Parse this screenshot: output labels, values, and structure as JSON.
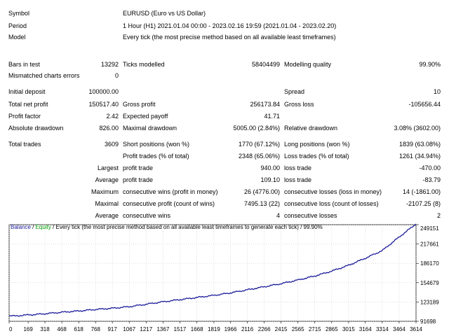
{
  "header": {
    "symbol_label": "Symbol",
    "symbol_value": "EURUSD (Euro vs US Dollar)",
    "period_label": "Period",
    "period_value": "1 Hour (H1) 2021.01.04 00:00 - 2023.02.16 19:59 (2021.01.04 - 2023.02.20)",
    "model_label": "Model",
    "model_value": "Every tick (the most precise method based on all available least timeframes)"
  },
  "stats": {
    "bars_label": "Bars in test",
    "bars_value": "13292",
    "ticks_label": "Ticks modelled",
    "ticks_value": "58404499",
    "quality_label": "Modelling quality",
    "quality_value": "99.90%",
    "mismatch_label": "Mismatched charts errors",
    "mismatch_value": "0",
    "deposit_label": "Initial deposit",
    "deposit_value": "100000.00",
    "spread_label": "Spread",
    "spread_value": "10",
    "netprofit_label": "Total net profit",
    "netprofit_value": "150517.40",
    "grossprofit_label": "Gross profit",
    "grossprofit_value": "256173.84",
    "grossloss_label": "Gross loss",
    "grossloss_value": "-105656.44",
    "pf_label": "Profit factor",
    "pf_value": "2.42",
    "ep_label": "Expected payoff",
    "ep_value": "41.71",
    "absdd_label": "Absolute drawdown",
    "absdd_value": "826.00",
    "maxdd_label": "Maximal drawdown",
    "maxdd_value": "5005.00 (2.84%)",
    "reldd_label": "Relative drawdown",
    "reldd_value": "3.08% (3602.00)",
    "trades_label": "Total trades",
    "trades_value": "3609",
    "short_label": "Short positions (won %)",
    "short_value": "1770 (67.12%)",
    "long_label": "Long positions (won %)",
    "long_value": "1839 (63.08%)",
    "profit_trades_label": "Profit trades (% of total)",
    "profit_trades_value": "2348 (65.06%)",
    "loss_trades_label": "Loss trades (% of total)",
    "loss_trades_value": "1261 (34.94%)",
    "largest_label": "Largest",
    "largest_profit_label": "profit trade",
    "largest_profit_value": "940.00",
    "largest_loss_label": "loss trade",
    "largest_loss_value": "-470.00",
    "average_label": "Average",
    "average_profit_label": "profit trade",
    "average_profit_value": "109.10",
    "average_loss_label": "loss trade",
    "average_loss_value": "-83.79",
    "maximum_label": "Maximum",
    "max_wins_label": "consecutive wins (profit in money)",
    "max_wins_value": "26 (4776.00)",
    "max_losses_label": "consecutive losses (loss in money)",
    "max_losses_value": "14 (-1861.00)",
    "maximal_label": "Maximal",
    "maximal_profit_label": "consecutive profit (count of wins)",
    "maximal_profit_value": "7495.13 (22)",
    "maximal_loss_label": "consecutive loss (count of losses)",
    "maximal_loss_value": "-2107.25 (8)",
    "average2_label": "Average",
    "avg_wins_label": "consecutive wins",
    "avg_wins_value": "4",
    "avg_losses_label": "consecutive losses",
    "avg_losses_value": "2"
  },
  "legend": {
    "balance": "Balance",
    "sep": " / ",
    "equity": "Equity",
    "rest": " / Every tick (the most precise method based on all available least timeframes to generate each tick) / 99.90%"
  },
  "colors": {
    "balance": "#1a1a9a",
    "equity": "#00a000",
    "grid": "#c8c8c8"
  },
  "chart_data": {
    "type": "line",
    "x_ticks": [
      "0",
      "169",
      "318",
      "468",
      "618",
      "768",
      "917",
      "1067",
      "1217",
      "1367",
      "1517",
      "1668",
      "1819",
      "1966",
      "2116",
      "2266",
      "2415",
      "2565",
      "2715",
      "2865",
      "3015",
      "3164",
      "3314",
      "3464",
      "3614"
    ],
    "y_ticks": [
      "249151",
      "217661",
      "186170",
      "154679",
      "123189",
      "91698"
    ],
    "ylim": [
      91698,
      249151
    ],
    "xlim": [
      0,
      3614
    ],
    "series": [
      {
        "name": "Balance",
        "x": [
          0,
          169,
          318,
          468,
          618,
          768,
          917,
          1067,
          1217,
          1367,
          1517,
          1668,
          1819,
          1966,
          2116,
          2266,
          2415,
          2565,
          2715,
          2865,
          3015,
          3164,
          3314,
          3464,
          3614
        ],
        "values": [
          100000,
          102000,
          104000,
          106500,
          108500,
          111000,
          113000,
          115500,
          119500,
          123500,
          127000,
          130500,
          134000,
          138000,
          143000,
          148000,
          153000,
          159000,
          165500,
          173500,
          183000,
          194500,
          207000,
          229000,
          250500
        ]
      }
    ]
  }
}
